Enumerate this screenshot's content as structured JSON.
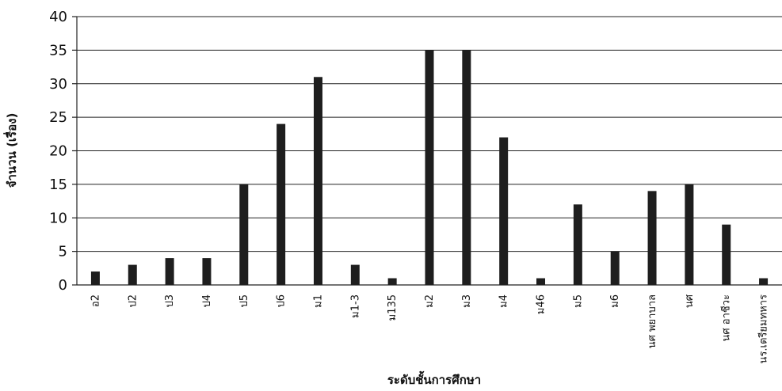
{
  "chart_data": {
    "type": "bar",
    "title": "",
    "xlabel": "ระดับชั้นการศึกษา",
    "ylabel": "จำนวน (เรื่อง)",
    "ylim": [
      0,
      40
    ],
    "yticks": [
      0,
      5,
      10,
      15,
      20,
      25,
      30,
      35,
      40
    ],
    "grid": true,
    "legend": "none",
    "bar_color": "#1e1e1e",
    "categories": [
      "อ2",
      "ป2",
      "ป3",
      "ป4",
      "ป5",
      "ป6",
      "ม1",
      "ม1-3",
      "ม135",
      "ม2",
      "ม3",
      "ม4",
      "ม46",
      "ม5",
      "ม6",
      "นศ พยาบาล",
      "นศ",
      "นศ อาชีวะ",
      "นร.เตรียมทหาร"
    ],
    "values": [
      2,
      3,
      4,
      4,
      15,
      24,
      31,
      3,
      1,
      35,
      35,
      22,
      1,
      12,
      5,
      14,
      15,
      9,
      1
    ]
  }
}
